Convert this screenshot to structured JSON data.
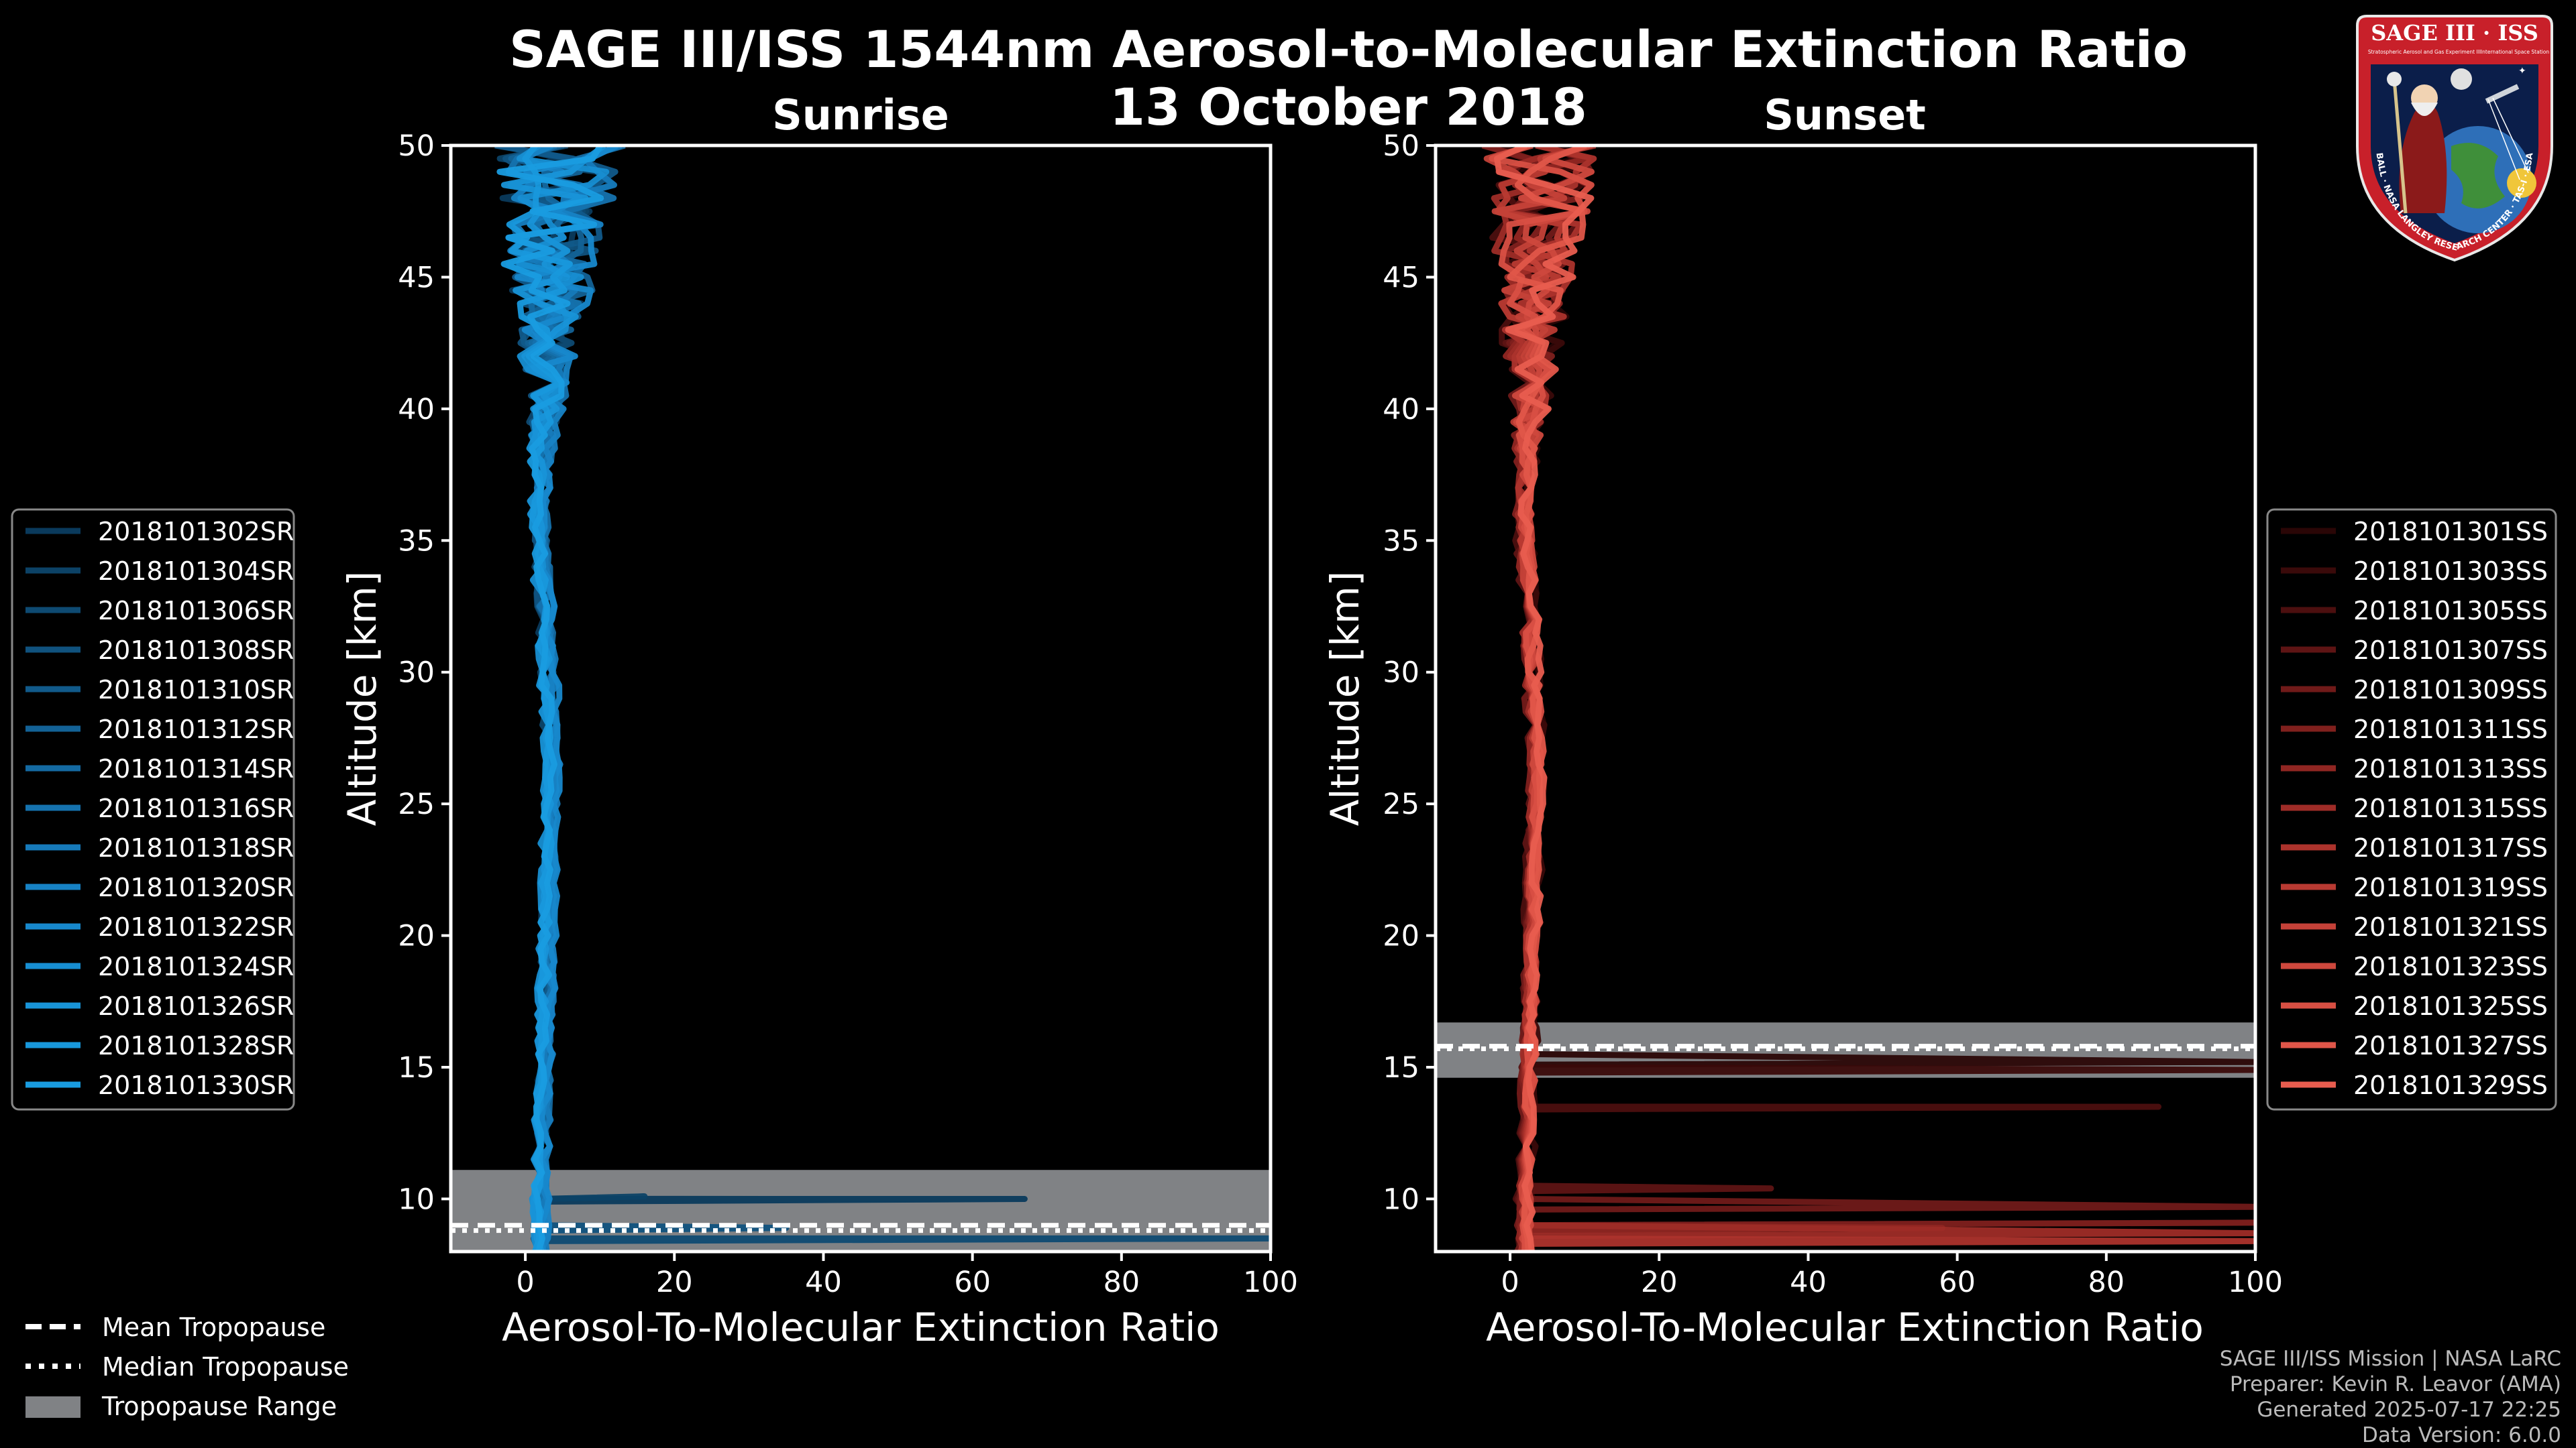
{
  "title": "SAGE III/ISS 1544nm Aerosol-to-Molecular Extinction Ratio",
  "date": "13 October 2018",
  "chart_data": [
    {
      "type": "line",
      "panel": "Sunrise",
      "title": "Sunrise",
      "xlabel": "Aerosol-To-Molecular Extinction Ratio",
      "ylabel": "Altitude [km]",
      "xlim": [
        -10,
        100
      ],
      "ylim": [
        8,
        50
      ],
      "xticks": [
        0,
        20,
        40,
        60,
        80,
        100
      ],
      "yticks": [
        10,
        15,
        20,
        25,
        30,
        35,
        40,
        45,
        50
      ],
      "tropopause": {
        "mean": 9.0,
        "median": 8.8,
        "range": [
          8.0,
          11.1
        ]
      },
      "series": [
        {
          "name": "2018101302SR",
          "color": "#0a3a5c"
        },
        {
          "name": "2018101304SR",
          "color": "#0c4266"
        },
        {
          "name": "2018101306SR",
          "color": "#0e4a72"
        },
        {
          "name": "2018101308SR",
          "color": "#10527e"
        },
        {
          "name": "2018101310SR",
          "color": "#115a8a"
        },
        {
          "name": "2018101312SR",
          "color": "#136296"
        },
        {
          "name": "2018101314SR",
          "color": "#146aa2"
        },
        {
          "name": "2018101316SR",
          "color": "#1572ae"
        },
        {
          "name": "2018101318SR",
          "color": "#167aba"
        },
        {
          "name": "2018101320SR",
          "color": "#1782c4"
        },
        {
          "name": "2018101322SR",
          "color": "#1788cc"
        },
        {
          "name": "2018101324SR",
          "color": "#178ed2"
        },
        {
          "name": "2018101326SR",
          "color": "#1894d8"
        },
        {
          "name": "2018101328SR",
          "color": "#1898dc"
        },
        {
          "name": "2018101330SR",
          "color": "#199ce0"
        }
      ],
      "spikes": [
        {
          "alt": 10.1,
          "value": 67
        },
        {
          "alt": 10.2,
          "value": 16
        },
        {
          "alt": 8.6,
          "value": 100
        },
        {
          "alt": 9.0,
          "value": 35
        }
      ]
    },
    {
      "type": "line",
      "panel": "Sunset",
      "title": "Sunset",
      "xlabel": "Aerosol-To-Molecular Extinction Ratio",
      "ylabel": "Altitude [km]",
      "xlim": [
        -10,
        100
      ],
      "ylim": [
        8,
        50
      ],
      "xticks": [
        0,
        20,
        40,
        60,
        80,
        100
      ],
      "yticks": [
        10,
        15,
        20,
        25,
        30,
        35,
        40,
        45,
        50
      ],
      "tropopause": {
        "mean": 15.8,
        "median": 15.7,
        "range": [
          14.6,
          16.7
        ]
      },
      "series": [
        {
          "name": "2018101301SS",
          "color": "#2a0606"
        },
        {
          "name": "2018101303SS",
          "color": "#3a0a0a"
        },
        {
          "name": "2018101305SS",
          "color": "#4c0f0f"
        },
        {
          "name": "2018101307SS",
          "color": "#5e1414"
        },
        {
          "name": "2018101309SS",
          "color": "#701a19"
        },
        {
          "name": "2018101311SS",
          "color": "#80201d"
        },
        {
          "name": "2018101313SS",
          "color": "#902622"
        },
        {
          "name": "2018101315SS",
          "color": "#9e2c27"
        },
        {
          "name": "2018101317SS",
          "color": "#ac332c"
        },
        {
          "name": "2018101319SS",
          "color": "#b83a32"
        },
        {
          "name": "2018101321SS",
          "color": "#c44138"
        },
        {
          "name": "2018101323SS",
          "color": "#ce483d"
        },
        {
          "name": "2018101325SS",
          "color": "#d84f43"
        },
        {
          "name": "2018101327SS",
          "color": "#e05649"
        },
        {
          "name": "2018101329SS",
          "color": "#e85d4f"
        }
      ],
      "spikes": [
        {
          "alt": 15.3,
          "value": 100
        },
        {
          "alt": 15.0,
          "value": 100
        },
        {
          "alt": 13.6,
          "value": 87
        },
        {
          "alt": 10.5,
          "value": 35
        },
        {
          "alt": 9.8,
          "value": 100
        },
        {
          "alt": 9.2,
          "value": 100
        },
        {
          "alt": 9.0,
          "value": 58
        },
        {
          "alt": 8.8,
          "value": 100
        },
        {
          "alt": 8.5,
          "value": 100
        }
      ]
    }
  ],
  "legend_tropopause": {
    "mean": "Mean Tropopause",
    "median": "Median Tropopause",
    "range": "Tropopause Range"
  },
  "credits": {
    "line1": "SAGE III/ISS Mission | NASA LaRC",
    "line2": "Preparer: Kevin R. Leavor (AMA)",
    "line3": "Generated 2025-07-17 22:25",
    "line4": "Data Version: 6.0.0"
  },
  "logo": {
    "title": "SAGE III · ISS",
    "subtitle_left": "Stratospheric Aerosol and Gas Experiment III",
    "subtitle_right": "International Space Station",
    "ring_text": "BALL · NASA LANGLEY RESEARCH CENTER · TAS-I · ESA"
  }
}
